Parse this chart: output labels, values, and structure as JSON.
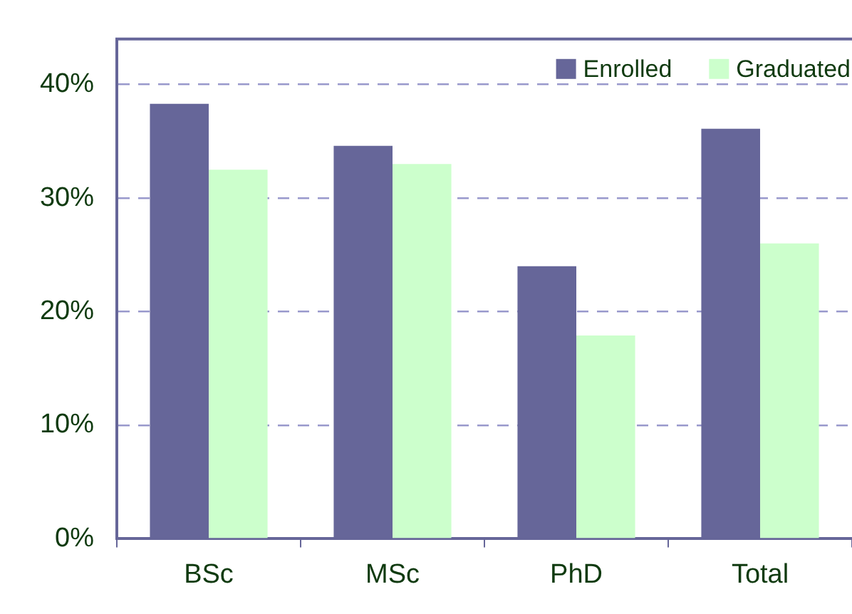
{
  "chart_data": {
    "type": "bar",
    "categories": [
      "BSc",
      "MSc",
      "PhD",
      "Total"
    ],
    "series": [
      {
        "name": "Enrolled",
        "color": "#666699",
        "values": [
          38.3,
          34.6,
          24.0,
          36.1
        ]
      },
      {
        "name": "Graduated",
        "color": "#ccffcc",
        "values": [
          32.5,
          33.0,
          17.9,
          26.0
        ]
      }
    ],
    "ylim": [
      0,
      44
    ],
    "yticks": [
      {
        "value": 0,
        "label": "0%"
      },
      {
        "value": 10,
        "label": "10%"
      },
      {
        "value": 20,
        "label": "20%"
      },
      {
        "value": 30,
        "label": "30%"
      },
      {
        "value": 40,
        "label": "40%"
      }
    ],
    "grid": "y",
    "legend": "top right"
  }
}
